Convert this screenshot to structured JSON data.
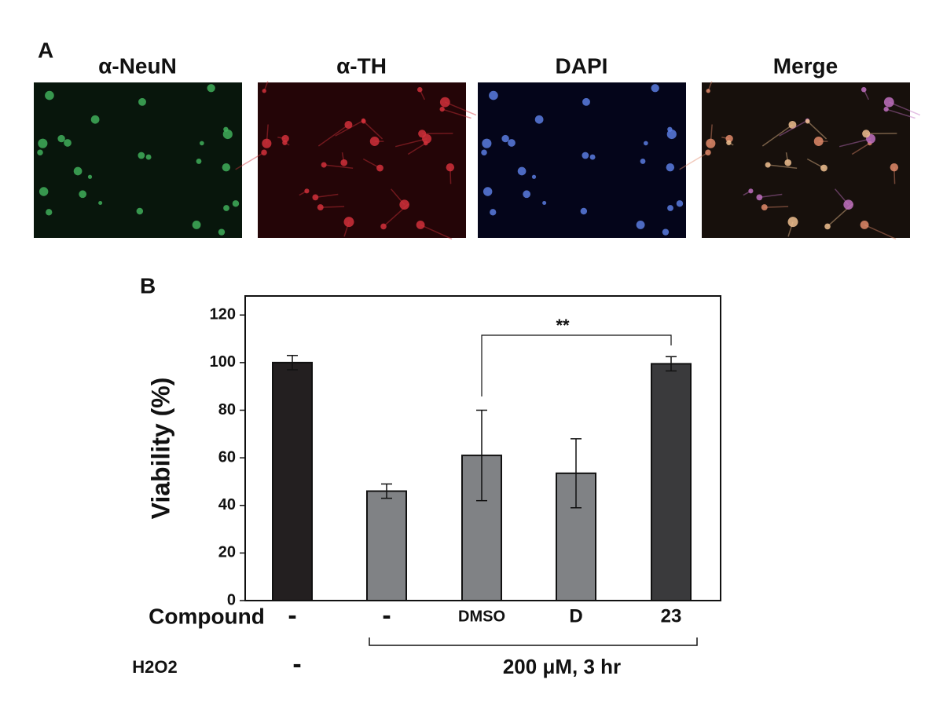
{
  "panel_labels": [
    "A",
    "B"
  ],
  "image_labels": [
    "α-NeuN",
    "α-TH",
    "DAPI",
    "Merge"
  ],
  "chart_data": {
    "type": "bar",
    "y_label": "Viability (%)",
    "category_row_label": "Compound",
    "categories": [
      "-",
      "-",
      "DMSO",
      "D",
      "23"
    ],
    "values": [
      100,
      46,
      61,
      53.5,
      99.5
    ],
    "errors": [
      3,
      3,
      19,
      14.5,
      3
    ],
    "colors": [
      "#231f20",
      "#808285",
      "#808285",
      "#808285",
      "#3a3a3c"
    ],
    "ylim": [
      0,
      128
    ],
    "yticks": [
      0,
      20,
      40,
      60,
      80,
      100,
      120
    ],
    "annotations": [
      {
        "text": "**"
      }
    ],
    "treatment": {
      "label": "H2O2",
      "control": "-",
      "text": "200 μM, 3 hr"
    }
  }
}
